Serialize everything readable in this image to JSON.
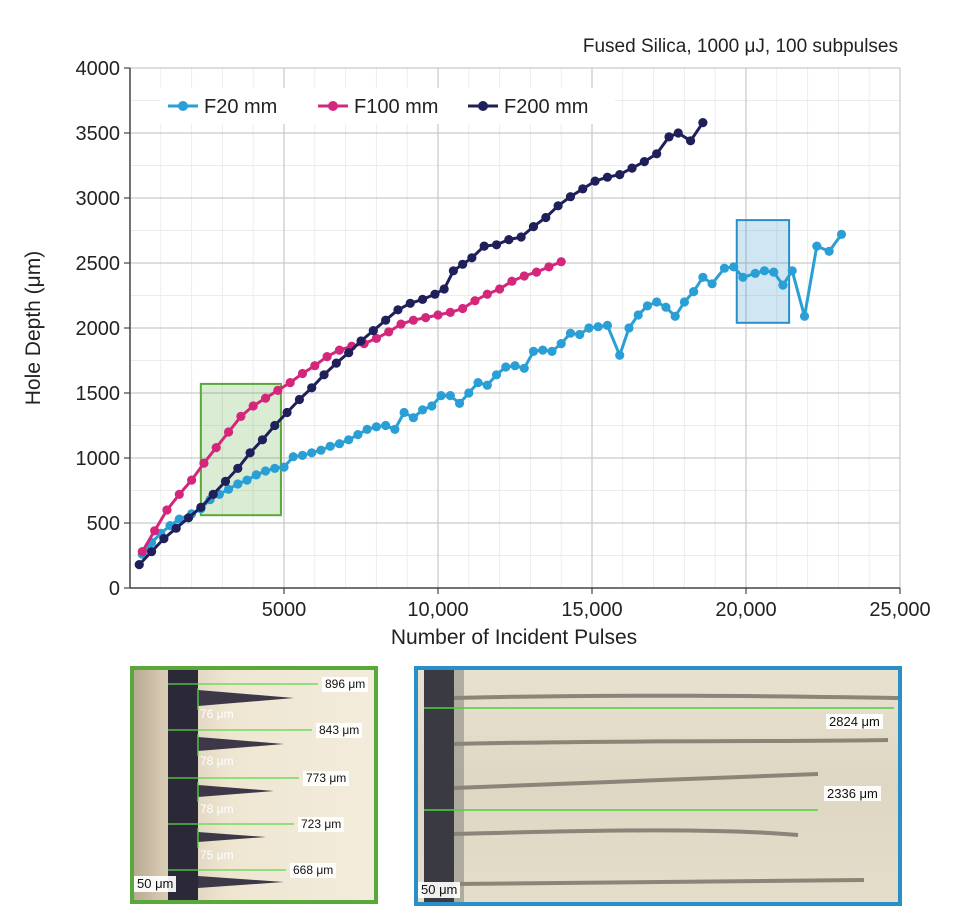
{
  "chart_data": {
    "type": "line",
    "title": "Fused Silica, 1000 μJ, 100 subpulses",
    "xlabel": "Number of Incident Pulses",
    "ylabel": "Hole Depth (μm)",
    "xlim": [
      0,
      25000
    ],
    "ylim": [
      0,
      4000
    ],
    "xticks": [
      5000,
      10000,
      15000,
      20000,
      25000
    ],
    "xtick_labels": [
      "5000",
      "10,000",
      "15,000",
      "20,000",
      "25,000"
    ],
    "yticks": [
      0,
      500,
      1000,
      1500,
      2000,
      2500,
      3000,
      3500,
      4000
    ],
    "ytick_labels": [
      "0",
      "500",
      "1000",
      "1500",
      "2000",
      "2500",
      "3000",
      "3500",
      "4000"
    ],
    "grid": true,
    "legend": "top-left",
    "series": [
      {
        "name": "F20 mm",
        "color": "#2a9fd6",
        "points": [
          [
            400,
            260
          ],
          [
            700,
            350
          ],
          [
            1000,
            420
          ],
          [
            1300,
            480
          ],
          [
            1600,
            530
          ],
          [
            2000,
            570
          ],
          [
            2300,
            610
          ],
          [
            2600,
            680
          ],
          [
            2900,
            720
          ],
          [
            3200,
            760
          ],
          [
            3500,
            800
          ],
          [
            3800,
            830
          ],
          [
            4100,
            870
          ],
          [
            4400,
            900
          ],
          [
            4700,
            920
          ],
          [
            5000,
            930
          ],
          [
            5300,
            1010
          ],
          [
            5600,
            1020
          ],
          [
            5900,
            1040
          ],
          [
            6200,
            1060
          ],
          [
            6500,
            1090
          ],
          [
            6800,
            1110
          ],
          [
            7100,
            1140
          ],
          [
            7400,
            1180
          ],
          [
            7700,
            1220
          ],
          [
            8000,
            1240
          ],
          [
            8300,
            1250
          ],
          [
            8600,
            1220
          ],
          [
            8900,
            1350
          ],
          [
            9200,
            1310
          ],
          [
            9500,
            1370
          ],
          [
            9800,
            1400
          ],
          [
            10100,
            1480
          ],
          [
            10400,
            1480
          ],
          [
            10700,
            1420
          ],
          [
            11000,
            1500
          ],
          [
            11300,
            1580
          ],
          [
            11600,
            1560
          ],
          [
            11900,
            1640
          ],
          [
            12200,
            1700
          ],
          [
            12500,
            1710
          ],
          [
            12800,
            1690
          ],
          [
            13100,
            1820
          ],
          [
            13400,
            1830
          ],
          [
            13700,
            1820
          ],
          [
            14000,
            1880
          ],
          [
            14300,
            1960
          ],
          [
            14600,
            1950
          ],
          [
            14900,
            2000
          ],
          [
            15200,
            2010
          ],
          [
            15500,
            2020
          ],
          [
            15900,
            1790
          ],
          [
            16200,
            2000
          ],
          [
            16500,
            2100
          ],
          [
            16800,
            2170
          ],
          [
            17100,
            2200
          ],
          [
            17400,
            2160
          ],
          [
            17700,
            2090
          ],
          [
            18000,
            2200
          ],
          [
            18300,
            2280
          ],
          [
            18600,
            2390
          ],
          [
            18900,
            2340
          ],
          [
            19300,
            2460
          ],
          [
            19600,
            2470
          ],
          [
            19900,
            2390
          ],
          [
            20300,
            2420
          ],
          [
            20600,
            2440
          ],
          [
            20900,
            2430
          ],
          [
            21200,
            2330
          ],
          [
            21500,
            2440
          ],
          [
            21900,
            2090
          ],
          [
            22300,
            2630
          ],
          [
            22700,
            2590
          ],
          [
            23100,
            2720
          ]
        ]
      },
      {
        "name": "F100 mm",
        "color": "#d4277c",
        "points": [
          [
            400,
            280
          ],
          [
            800,
            440
          ],
          [
            1200,
            600
          ],
          [
            1600,
            720
          ],
          [
            2000,
            830
          ],
          [
            2400,
            960
          ],
          [
            2800,
            1080
          ],
          [
            3200,
            1200
          ],
          [
            3600,
            1320
          ],
          [
            4000,
            1400
          ],
          [
            4400,
            1460
          ],
          [
            4800,
            1520
          ],
          [
            5200,
            1580
          ],
          [
            5600,
            1650
          ],
          [
            6000,
            1710
          ],
          [
            6400,
            1780
          ],
          [
            6800,
            1830
          ],
          [
            7200,
            1860
          ],
          [
            7600,
            1880
          ],
          [
            8000,
            1920
          ],
          [
            8400,
            1970
          ],
          [
            8800,
            2030
          ],
          [
            9200,
            2060
          ],
          [
            9600,
            2080
          ],
          [
            10000,
            2100
          ],
          [
            10400,
            2120
          ],
          [
            10800,
            2150
          ],
          [
            11200,
            2210
          ],
          [
            11600,
            2260
          ],
          [
            12000,
            2300
          ],
          [
            12400,
            2360
          ],
          [
            12800,
            2400
          ],
          [
            13200,
            2430
          ],
          [
            13600,
            2470
          ],
          [
            14000,
            2510
          ]
        ]
      },
      {
        "name": "F200 mm",
        "color": "#1f1f5a",
        "points": [
          [
            300,
            180
          ],
          [
            700,
            280
          ],
          [
            1100,
            380
          ],
          [
            1500,
            460
          ],
          [
            1900,
            540
          ],
          [
            2300,
            620
          ],
          [
            2700,
            720
          ],
          [
            3100,
            820
          ],
          [
            3500,
            920
          ],
          [
            3900,
            1040
          ],
          [
            4300,
            1140
          ],
          [
            4700,
            1250
          ],
          [
            5100,
            1350
          ],
          [
            5500,
            1450
          ],
          [
            5900,
            1540
          ],
          [
            6300,
            1640
          ],
          [
            6700,
            1730
          ],
          [
            7100,
            1810
          ],
          [
            7500,
            1900
          ],
          [
            7900,
            1980
          ],
          [
            8300,
            2060
          ],
          [
            8700,
            2140
          ],
          [
            9100,
            2190
          ],
          [
            9500,
            2220
          ],
          [
            9900,
            2260
          ],
          [
            10200,
            2300
          ],
          [
            10500,
            2440
          ],
          [
            10800,
            2490
          ],
          [
            11100,
            2540
          ],
          [
            11500,
            2630
          ],
          [
            11900,
            2640
          ],
          [
            12300,
            2680
          ],
          [
            12700,
            2700
          ],
          [
            13100,
            2780
          ],
          [
            13500,
            2850
          ],
          [
            13900,
            2940
          ],
          [
            14300,
            3010
          ],
          [
            14700,
            3070
          ],
          [
            15100,
            3130
          ],
          [
            15500,
            3160
          ],
          [
            15900,
            3180
          ],
          [
            16300,
            3230
          ],
          [
            16700,
            3280
          ],
          [
            17100,
            3340
          ],
          [
            17500,
            3470
          ],
          [
            17800,
            3500
          ],
          [
            18200,
            3440
          ],
          [
            18600,
            3580
          ]
        ]
      }
    ],
    "highlights": [
      {
        "name": "green-box",
        "color": "#5aa83a",
        "x": [
          2300,
          4900
        ],
        "y": [
          560,
          1570
        ]
      },
      {
        "name": "blue-box",
        "color": "#2a8fc8",
        "x": [
          19700,
          21400
        ],
        "y": [
          2040,
          2830
        ]
      }
    ]
  },
  "panel_left": {
    "depth_labels": [
      "896 μm",
      "843 μm",
      "773 μm",
      "723 μm",
      "668 μm"
    ],
    "width_labels": [
      "76 μm",
      "78 μm",
      "78 μm",
      "75 μm"
    ],
    "scale_label": "50 μm"
  },
  "panel_right": {
    "depth_labels": [
      "2824 μm",
      "2336 μm"
    ],
    "scale_label": "50 μm"
  }
}
